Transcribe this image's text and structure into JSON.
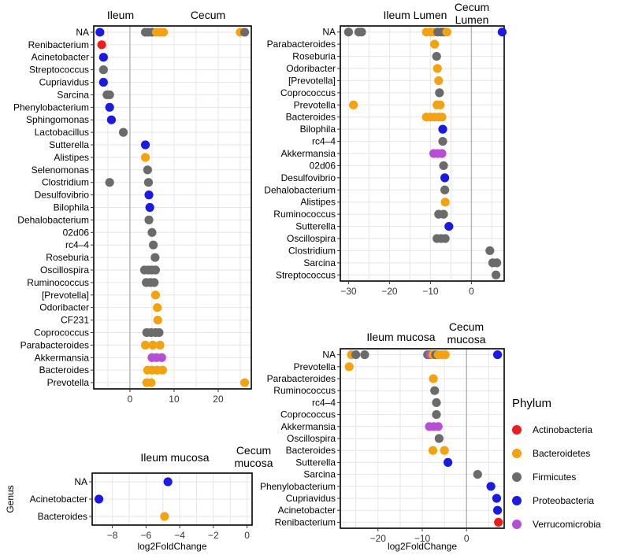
{
  "colors": {
    "Actinobacteria": "#ee1c1c",
    "Bacteroidetes": "#f5a20f",
    "Firmicutes": "#6b6b6b",
    "Proteobacteria": "#1a1ae6",
    "Verrucomicrobia": "#b64fd6"
  },
  "legend": {
    "title": "Phylum",
    "items": [
      {
        "label": "Actinobacteria",
        "color": "#ee1c1c"
      },
      {
        "label": "Bacteroidetes",
        "color": "#f5a20f"
      },
      {
        "label": "Firmicutes",
        "color": "#6b6b6b"
      },
      {
        "label": "Proteobacteria",
        "color": "#1a1ae6"
      },
      {
        "label": "Verrucomicrobia",
        "color": "#b64fd6"
      }
    ]
  },
  "chart_data": [
    {
      "type": "scatter",
      "title_left": "Ileum",
      "title_right": "Cecum",
      "xlabel": "",
      "ylabel": "",
      "xlim": [
        -8.2,
        27.5
      ],
      "xticks": [
        0,
        10,
        20
      ],
      "zero_line": true,
      "categories": [
        "NA",
        "Renibacterium",
        "Acinetobacter",
        "Streptococcus",
        "Cupriavidus",
        "Sarcina",
        "Phenylobacterium",
        "Sphingomonas",
        "Lactobacillus",
        "Sutterella",
        "Alistipes",
        "Selenomonas",
        "Clostridium",
        "Desulfovibrio",
        "Bilophila",
        "Dehalobacterium",
        "02d06",
        "rc4–4",
        "Roseburia",
        "Oscillospira",
        "Ruminococcus",
        "[Prevotella]",
        "Odoribacter",
        "CF231",
        "Coprococcus",
        "Parabacteroides",
        "Akkermansia",
        "Bacteroides",
        "Prevotella"
      ],
      "points": [
        {
          "g": "NA",
          "x": -6.8,
          "p": "Proteobacteria"
        },
        {
          "g": "NA",
          "x": 3.5,
          "p": "Firmicutes"
        },
        {
          "g": "NA",
          "x": 4.2,
          "p": "Firmicutes"
        },
        {
          "g": "NA",
          "x": 5.0,
          "p": "Firmicutes"
        },
        {
          "g": "NA",
          "x": 6.0,
          "p": "Bacteroidetes"
        },
        {
          "g": "NA",
          "x": 6.8,
          "p": "Bacteroidetes"
        },
        {
          "g": "NA",
          "x": 7.6,
          "p": "Bacteroidetes"
        },
        {
          "g": "NA",
          "x": 25.0,
          "p": "Bacteroidetes"
        },
        {
          "g": "NA",
          "x": 26.0,
          "p": "Firmicutes"
        },
        {
          "g": "Renibacterium",
          "x": -6.4,
          "p": "Actinobacteria"
        },
        {
          "g": "Acinetobacter",
          "x": -6.0,
          "p": "Proteobacteria"
        },
        {
          "g": "Streptococcus",
          "x": -6.0,
          "p": "Firmicutes"
        },
        {
          "g": "Cupriavidus",
          "x": -6.0,
          "p": "Proteobacteria"
        },
        {
          "g": "Sarcina",
          "x": -5.2,
          "p": "Firmicutes"
        },
        {
          "g": "Sarcina",
          "x": -4.6,
          "p": "Firmicutes"
        },
        {
          "g": "Phenylobacterium",
          "x": -4.6,
          "p": "Proteobacteria"
        },
        {
          "g": "Sphingomonas",
          "x": -4.2,
          "p": "Proteobacteria"
        },
        {
          "g": "Lactobacillus",
          "x": -1.5,
          "p": "Firmicutes"
        },
        {
          "g": "Sutterella",
          "x": 3.5,
          "p": "Proteobacteria"
        },
        {
          "g": "Alistipes",
          "x": 3.5,
          "p": "Bacteroidetes"
        },
        {
          "g": "Selenomonas",
          "x": 4.0,
          "p": "Firmicutes"
        },
        {
          "g": "Clostridium",
          "x": -4.6,
          "p": "Firmicutes"
        },
        {
          "g": "Clostridium",
          "x": 4.2,
          "p": "Firmicutes"
        },
        {
          "g": "Desulfovibrio",
          "x": 4.3,
          "p": "Proteobacteria"
        },
        {
          "g": "Bilophila",
          "x": 4.5,
          "p": "Proteobacteria"
        },
        {
          "g": "Dehalobacterium",
          "x": 4.3,
          "p": "Firmicutes"
        },
        {
          "g": "02d06",
          "x": 5.0,
          "p": "Firmicutes"
        },
        {
          "g": "rc4–4",
          "x": 5.3,
          "p": "Firmicutes"
        },
        {
          "g": "Roseburia",
          "x": 5.7,
          "p": "Firmicutes"
        },
        {
          "g": "Oscillospira",
          "x": 3.3,
          "p": "Firmicutes"
        },
        {
          "g": "Oscillospira",
          "x": 4.2,
          "p": "Firmicutes"
        },
        {
          "g": "Oscillospira",
          "x": 5.0,
          "p": "Firmicutes"
        },
        {
          "g": "Oscillospira",
          "x": 5.8,
          "p": "Firmicutes"
        },
        {
          "g": "Ruminococcus",
          "x": 3.7,
          "p": "Firmicutes"
        },
        {
          "g": "Ruminococcus",
          "x": 4.6,
          "p": "Firmicutes"
        },
        {
          "g": "Ruminococcus",
          "x": 5.5,
          "p": "Firmicutes"
        },
        {
          "g": "[Prevotella]",
          "x": 5.8,
          "p": "Bacteroidetes"
        },
        {
          "g": "Odoribacter",
          "x": 6.2,
          "p": "Bacteroidetes"
        },
        {
          "g": "CF231",
          "x": 6.3,
          "p": "Bacteroidetes"
        },
        {
          "g": "Coprococcus",
          "x": 3.8,
          "p": "Firmicutes"
        },
        {
          "g": "Coprococcus",
          "x": 4.8,
          "p": "Firmicutes"
        },
        {
          "g": "Coprococcus",
          "x": 5.8,
          "p": "Firmicutes"
        },
        {
          "g": "Coprococcus",
          "x": 6.6,
          "p": "Firmicutes"
        },
        {
          "g": "Parabacteroides",
          "x": 3.5,
          "p": "Bacteroidetes"
        },
        {
          "g": "Parabacteroides",
          "x": 5.2,
          "p": "Bacteroidetes"
        },
        {
          "g": "Parabacteroides",
          "x": 6.8,
          "p": "Bacteroidetes"
        },
        {
          "g": "Akkermansia",
          "x": 5.0,
          "p": "Verrucomicrobia"
        },
        {
          "g": "Akkermansia",
          "x": 6.0,
          "p": "Verrucomicrobia"
        },
        {
          "g": "Akkermansia",
          "x": 7.2,
          "p": "Verrucomicrobia"
        },
        {
          "g": "Bacteroides",
          "x": 4.0,
          "p": "Bacteroidetes"
        },
        {
          "g": "Bacteroides",
          "x": 5.0,
          "p": "Bacteroidetes"
        },
        {
          "g": "Bacteroides",
          "x": 6.2,
          "p": "Bacteroidetes"
        },
        {
          "g": "Bacteroides",
          "x": 7.4,
          "p": "Bacteroidetes"
        },
        {
          "g": "Prevotella",
          "x": 3.8,
          "p": "Bacteroidetes"
        },
        {
          "g": "Prevotella",
          "x": 4.8,
          "p": "Bacteroidetes"
        },
        {
          "g": "Prevotella",
          "x": 26.0,
          "p": "Bacteroidetes"
        }
      ]
    },
    {
      "type": "scatter",
      "title_left": "Ileum Lumen",
      "title_right": "Cecum\nLumen",
      "xlabel": "",
      "ylabel": "",
      "xlim": [
        -32,
        8
      ],
      "xticks": [
        -30,
        -20,
        -10,
        0
      ],
      "zero_line": true,
      "categories": [
        "NA",
        "Parabacteroides",
        "Roseburia",
        "Odoribacter",
        "[Prevotella]",
        "Coprococcus",
        "Prevotella",
        "Bacteroides",
        "Bilophila",
        "rc4–4",
        "Akkermansia",
        "02d06",
        "Desulfovibrio",
        "Dehalobacterium",
        "Alistipes",
        "Ruminococcus",
        "Sutterella",
        "Oscillospira",
        "Clostridium",
        "Sarcina",
        "Streptococcus"
      ],
      "points": [
        {
          "g": "NA",
          "x": -30.0,
          "p": "Firmicutes"
        },
        {
          "g": "NA",
          "x": -27.5,
          "p": "Firmicutes"
        },
        {
          "g": "NA",
          "x": -26.8,
          "p": "Firmicutes"
        },
        {
          "g": "NA",
          "x": -11.0,
          "p": "Bacteroidetes"
        },
        {
          "g": "NA",
          "x": -10.0,
          "p": "Bacteroidetes"
        },
        {
          "g": "NA",
          "x": -9.0,
          "p": "Bacteroidetes"
        },
        {
          "g": "NA",
          "x": -8.2,
          "p": "Firmicutes"
        },
        {
          "g": "NA",
          "x": -7.4,
          "p": "Firmicutes"
        },
        {
          "g": "NA",
          "x": -6.6,
          "p": "Firmicutes"
        },
        {
          "g": "NA",
          "x": -6.0,
          "p": "Bacteroidetes"
        },
        {
          "g": "NA",
          "x": 7.5,
          "p": "Proteobacteria"
        },
        {
          "g": "Parabacteroides",
          "x": -9.0,
          "p": "Bacteroidetes"
        },
        {
          "g": "Roseburia",
          "x": -8.5,
          "p": "Firmicutes"
        },
        {
          "g": "Odoribacter",
          "x": -8.3,
          "p": "Bacteroidetes"
        },
        {
          "g": "[Prevotella]",
          "x": -8.0,
          "p": "Bacteroidetes"
        },
        {
          "g": "Coprococcus",
          "x": -7.8,
          "p": "Firmicutes"
        },
        {
          "g": "Prevotella",
          "x": -28.8,
          "p": "Bacteroidetes"
        },
        {
          "g": "Prevotella",
          "x": -8.4,
          "p": "Bacteroidetes"
        },
        {
          "g": "Prevotella",
          "x": -7.6,
          "p": "Bacteroidetes"
        },
        {
          "g": "Bacteroides",
          "x": -11.0,
          "p": "Bacteroidetes"
        },
        {
          "g": "Bacteroides",
          "x": -10.0,
          "p": "Bacteroidetes"
        },
        {
          "g": "Bacteroides",
          "x": -9.0,
          "p": "Bacteroidetes"
        },
        {
          "g": "Bacteroides",
          "x": -8.0,
          "p": "Bacteroidetes"
        },
        {
          "g": "Bacteroides",
          "x": -7.2,
          "p": "Bacteroidetes"
        },
        {
          "g": "Bilophila",
          "x": -7.0,
          "p": "Proteobacteria"
        },
        {
          "g": "rc4–4",
          "x": -7.0,
          "p": "Firmicutes"
        },
        {
          "g": "Akkermansia",
          "x": -9.2,
          "p": "Verrucomicrobia"
        },
        {
          "g": "Akkermansia",
          "x": -8.2,
          "p": "Verrucomicrobia"
        },
        {
          "g": "Akkermansia",
          "x": -7.2,
          "p": "Verrucomicrobia"
        },
        {
          "g": "02d06",
          "x": -6.8,
          "p": "Firmicutes"
        },
        {
          "g": "Desulfovibrio",
          "x": -6.5,
          "p": "Proteobacteria"
        },
        {
          "g": "Dehalobacterium",
          "x": -6.5,
          "p": "Firmicutes"
        },
        {
          "g": "Alistipes",
          "x": -6.4,
          "p": "Bacteroidetes"
        },
        {
          "g": "Ruminococcus",
          "x": -8.0,
          "p": "Firmicutes"
        },
        {
          "g": "Ruminococcus",
          "x": -6.8,
          "p": "Firmicutes"
        },
        {
          "g": "Sutterella",
          "x": -5.5,
          "p": "Proteobacteria"
        },
        {
          "g": "Oscillospira",
          "x": -8.4,
          "p": "Firmicutes"
        },
        {
          "g": "Oscillospira",
          "x": -7.4,
          "p": "Firmicutes"
        },
        {
          "g": "Oscillospira",
          "x": -6.4,
          "p": "Firmicutes"
        },
        {
          "g": "Clostridium",
          "x": 4.5,
          "p": "Firmicutes"
        },
        {
          "g": "Sarcina",
          "x": 5.2,
          "p": "Firmicutes"
        },
        {
          "g": "Sarcina",
          "x": 6.2,
          "p": "Firmicutes"
        },
        {
          "g": "Streptococcus",
          "x": 6.0,
          "p": "Firmicutes"
        }
      ]
    },
    {
      "type": "scatter",
      "title_left": "Ileum mucosa",
      "title_right": "Cecum\nmucosa",
      "xlabel": "log2FoldChange",
      "ylabel": "",
      "xlim": [
        -28.5,
        8.5
      ],
      "xticks": [
        -20,
        -10,
        0
      ],
      "zero_line": true,
      "categories": [
        "NA",
        "Prevotella",
        "Parabacteroides",
        "Ruminococcus",
        "rc4–4",
        "Coprococcus",
        "Akkermansia",
        "Oscillospira",
        "Bacteroides",
        "Sutterella",
        "Sarcina",
        "Phenylobacterium",
        "Cupriavidus",
        "Acinetobacter",
        "Renibacterium"
      ],
      "points": [
        {
          "g": "NA",
          "x": -26.0,
          "p": "Bacteroidetes"
        },
        {
          "g": "NA",
          "x": -25.0,
          "p": "Firmicutes"
        },
        {
          "g": "NA",
          "x": -23.0,
          "p": "Firmicutes"
        },
        {
          "g": "NA",
          "x": -8.8,
          "p": "Firmicutes"
        },
        {
          "g": "NA",
          "x": -8.2,
          "p": "Verrucomicrobia"
        },
        {
          "g": "NA",
          "x": -7.6,
          "p": "Bacteroidetes"
        },
        {
          "g": "NA",
          "x": -7.0,
          "p": "Firmicutes"
        },
        {
          "g": "NA",
          "x": -6.4,
          "p": "Bacteroidetes"
        },
        {
          "g": "NA",
          "x": -5.6,
          "p": "Bacteroidetes"
        },
        {
          "g": "NA",
          "x": -4.8,
          "p": "Bacteroidetes"
        },
        {
          "g": "NA",
          "x": 7.0,
          "p": "Proteobacteria"
        },
        {
          "g": "Prevotella",
          "x": -26.5,
          "p": "Bacteroidetes"
        },
        {
          "g": "Parabacteroides",
          "x": -7.5,
          "p": "Bacteroidetes"
        },
        {
          "g": "Ruminococcus",
          "x": -7.2,
          "p": "Firmicutes"
        },
        {
          "g": "rc4–4",
          "x": -6.8,
          "p": "Firmicutes"
        },
        {
          "g": "Coprococcus",
          "x": -6.8,
          "p": "Firmicutes"
        },
        {
          "g": "Akkermansia",
          "x": -8.4,
          "p": "Verrucomicrobia"
        },
        {
          "g": "Akkermansia",
          "x": -7.4,
          "p": "Verrucomicrobia"
        },
        {
          "g": "Akkermansia",
          "x": -6.4,
          "p": "Verrucomicrobia"
        },
        {
          "g": "Oscillospira",
          "x": -6.2,
          "p": "Firmicutes"
        },
        {
          "g": "Bacteroides",
          "x": -7.6,
          "p": "Bacteroidetes"
        },
        {
          "g": "Bacteroides",
          "x": -5.0,
          "p": "Bacteroidetes"
        },
        {
          "g": "Sutterella",
          "x": -4.2,
          "p": "Proteobacteria"
        },
        {
          "g": "Sarcina",
          "x": 2.5,
          "p": "Firmicutes"
        },
        {
          "g": "Phenylobacterium",
          "x": 5.5,
          "p": "Proteobacteria"
        },
        {
          "g": "Cupriavidus",
          "x": 6.8,
          "p": "Proteobacteria"
        },
        {
          "g": "Acinetobacter",
          "x": 7.0,
          "p": "Proteobacteria"
        },
        {
          "g": "Renibacterium",
          "x": 7.2,
          "p": "Actinobacteria"
        }
      ]
    },
    {
      "type": "scatter",
      "title_left": "Ileum mucosa",
      "title_right": "Cecum\nmucosa",
      "xlabel": "log2FoldChange",
      "ylabel": "Genus",
      "xlim": [
        -9.2,
        0.3
      ],
      "xticks": [
        -8,
        -6,
        -4,
        -2,
        0
      ],
      "zero_line": false,
      "categories": [
        "NA",
        "Acinetobacter",
        "Bacteroides"
      ],
      "points": [
        {
          "g": "NA",
          "x": -4.7,
          "p": "Proteobacteria"
        },
        {
          "g": "Acinetobacter",
          "x": -8.8,
          "p": "Proteobacteria"
        },
        {
          "g": "Bacteroides",
          "x": -4.9,
          "p": "Bacteroidetes"
        }
      ]
    }
  ]
}
